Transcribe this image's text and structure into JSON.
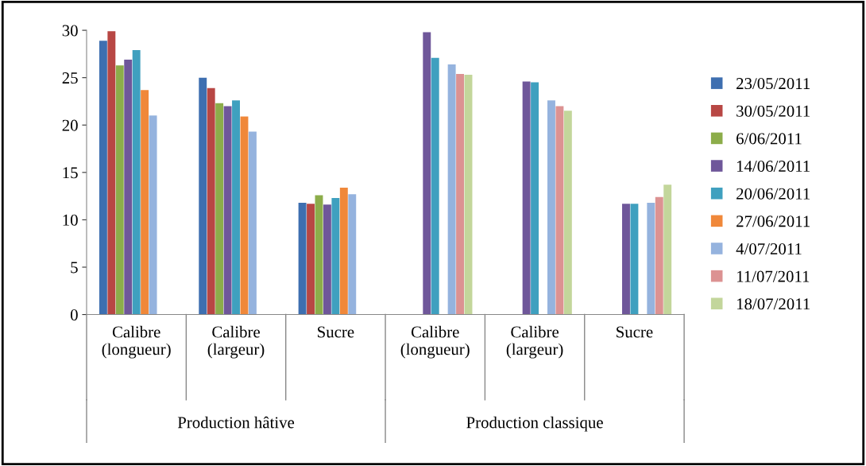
{
  "chart_data": {
    "type": "bar",
    "categories": [
      "Calibre\n(longueur)",
      "Calibre\n(largeur)",
      "Sucre",
      "Calibre\n(longueur)",
      "Calibre\n(largeur)",
      "Sucre"
    ],
    "series": [
      {
        "name": "23/05/2011",
        "color": "#3e6fb0",
        "values": [
          28.9,
          25.0,
          11.8,
          null,
          null,
          null
        ]
      },
      {
        "name": "30/05/2011",
        "color": "#b84744",
        "values": [
          29.9,
          23.9,
          11.7,
          null,
          null,
          null
        ]
      },
      {
        "name": "6/06/2011",
        "color": "#8cad4a",
        "values": [
          26.3,
          22.3,
          12.6,
          null,
          null,
          null
        ]
      },
      {
        "name": "14/06/2011",
        "color": "#6f579a",
        "values": [
          26.9,
          22.0,
          11.6,
          29.8,
          24.6,
          11.7
        ]
      },
      {
        "name": "20/06/2011",
        "color": "#3fa0bf",
        "values": [
          27.9,
          22.6,
          12.3,
          27.1,
          24.5,
          11.7
        ]
      },
      {
        "name": "27/06/2011",
        "color": "#f0883a",
        "values": [
          23.7,
          20.9,
          13.4,
          null,
          null,
          null
        ]
      },
      {
        "name": "4/07/2011",
        "color": "#95b3de",
        "values": [
          21.0,
          19.3,
          12.7,
          26.4,
          22.6,
          11.8
        ]
      },
      {
        "name": "11/07/2011",
        "color": "#dc9292",
        "values": [
          null,
          null,
          null,
          25.4,
          22.0,
          12.4
        ]
      },
      {
        "name": "18/07/2011",
        "color": "#c3d69b",
        "values": [
          null,
          null,
          null,
          25.3,
          21.5,
          13.7
        ]
      }
    ],
    "annotations": [
      "Production hâtive",
      "Production classique"
    ],
    "ylim": [
      0,
      30
    ],
    "yticks": [
      0,
      5,
      10,
      15,
      20,
      25,
      30
    ],
    "grid": false,
    "legend": "right"
  }
}
